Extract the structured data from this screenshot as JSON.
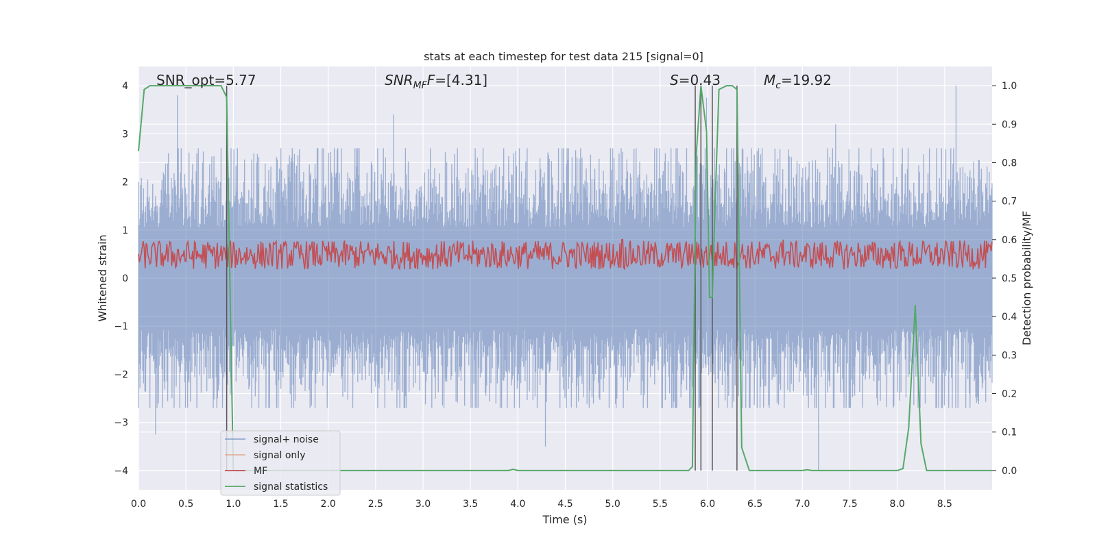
{
  "chart_data": {
    "type": "line",
    "title": "stats at each timestep for test data 215 [signal=0]",
    "xlabel": "Time (s)",
    "ylabel_left": "Whitened strain",
    "ylabel_right": "Detection probability/MF",
    "xlim": [
      0,
      9.0
    ],
    "ylim_left": [
      -4.4,
      4.4
    ],
    "ylim_right": [
      -0.05,
      1.05
    ],
    "grid": true,
    "background": "#eaeaf2",
    "x_ticks": [
      "0.0",
      "0.5",
      "1.0",
      "1.5",
      "2.0",
      "2.5",
      "3.0",
      "3.5",
      "4.0",
      "4.5",
      "5.0",
      "5.5",
      "6.0",
      "6.5",
      "7.0",
      "7.5",
      "8.0",
      "8.5"
    ],
    "y_ticks_left": [
      4,
      3,
      2,
      1,
      0,
      -1,
      -2,
      -3,
      -4
    ],
    "y_tick_labels_left": [
      "4",
      "3",
      "2",
      "1",
      "0",
      "−1",
      "−2",
      "−3",
      "−4"
    ],
    "y_ticks_right": [
      1.0,
      0.9,
      0.8,
      0.7,
      0.6,
      0.5,
      0.4,
      0.3,
      0.2,
      0.1,
      0.0
    ],
    "y_tick_labels_right": [
      "1.0",
      "0.9",
      "0.8",
      "0.7",
      "0.6",
      "0.5",
      "0.4",
      "0.3",
      "0.2",
      "0.1",
      "0.0"
    ],
    "annotations": {
      "snr_opt": "SNR_opt=5.77",
      "snr_mf_main": "SNR",
      "snr_mf_sub": "MF",
      "snr_mf_value": "=[4.31]",
      "s_main": "S",
      "s_value": "=0.43",
      "mc_main": "M",
      "mc_sub": "c",
      "mc_value": "=19.92"
    },
    "legend": {
      "position": "lower-left",
      "entries": [
        {
          "label": "signal+ noise",
          "color": "#4c72b0"
        },
        {
          "label": "signal only",
          "color": "#dd8452"
        },
        {
          "label": "MF",
          "color": "#c44e52"
        },
        {
          "label": "signal statistics",
          "color": "#55a868"
        }
      ]
    },
    "vertical_lines_x": [
      0.93,
      5.87,
      5.93,
      6.05,
      6.31
    ],
    "signal_statistics": {
      "color": "#55a868",
      "x": [
        0.0,
        0.06,
        0.12,
        0.2,
        0.4,
        0.6,
        0.8,
        0.87,
        0.93,
        0.97,
        1.0,
        1.5,
        2.0,
        2.5,
        3.0,
        3.5,
        3.9,
        3.95,
        4.0,
        4.5,
        5.0,
        5.5,
        5.8,
        5.84,
        5.88,
        5.93,
        5.99,
        6.02,
        6.05,
        6.08,
        6.12,
        6.2,
        6.26,
        6.31,
        6.36,
        6.44,
        6.5,
        7.0,
        7.05,
        7.1,
        7.5,
        8.0,
        8.06,
        8.12,
        8.19,
        8.25,
        8.31,
        8.4,
        9.0
      ],
      "y": [
        0.83,
        0.99,
        1.0,
        1.0,
        1.0,
        1.0,
        1.0,
        1.0,
        0.97,
        0.4,
        0.0,
        0.0,
        0.0,
        0.0,
        0.0,
        0.0,
        0.0,
        0.003,
        0.0,
        0.0,
        0.0,
        0.0,
        0.0,
        0.01,
        0.82,
        1.0,
        0.88,
        0.45,
        0.45,
        0.7,
        0.99,
        1.0,
        1.0,
        0.99,
        0.06,
        0.0,
        0.0,
        0.0,
        0.002,
        0.0,
        0.0,
        0.0,
        0.005,
        0.11,
        0.43,
        0.07,
        0.0,
        0.0,
        0.0
      ]
    },
    "signal_noise": {
      "color": "#4c72b0",
      "opacity": 0.5,
      "samples": 1200,
      "typical_range": [
        -1.6,
        1.6
      ],
      "spikes": [
        {
          "x": 0.41,
          "y": 3.8
        },
        {
          "x": 0.18,
          "y": -3.25
        },
        {
          "x": 2.69,
          "y": 3.4
        },
        {
          "x": 4.29,
          "y": -3.5
        },
        {
          "x": 7.17,
          "y": -4.0
        },
        {
          "x": 8.62,
          "y": 4.0
        },
        {
          "x": 5.99,
          "y": 3.75
        },
        {
          "x": 0.87,
          "y": 2.7
        },
        {
          "x": 7.35,
          "y": 3.2
        }
      ]
    },
    "mf_series": {
      "color": "#c44e52",
      "samples": 900,
      "typical_range": [
        0.5,
        0.62
      ],
      "peaks": [
        {
          "x": 0.23,
          "y": 0.585
        },
        {
          "x": 5.1,
          "y": 0.6
        },
        {
          "x": 6.8,
          "y": 0.6
        }
      ]
    },
    "signal_only": {
      "color": "#dd8452",
      "values": []
    }
  }
}
